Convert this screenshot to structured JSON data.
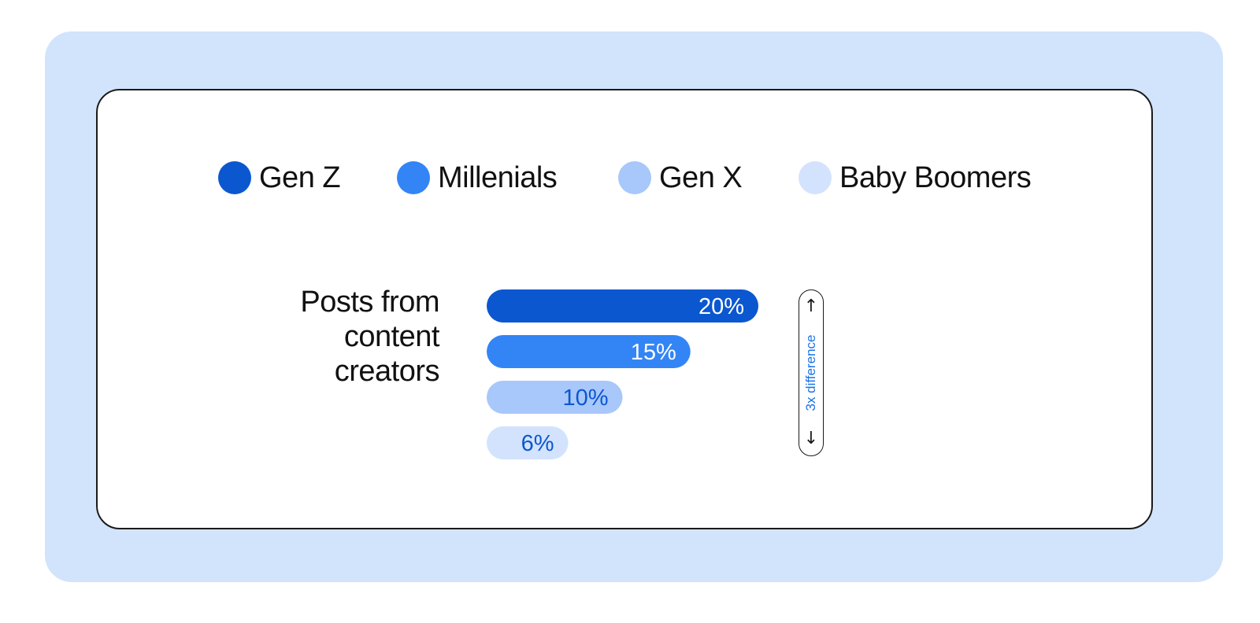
{
  "colors": {
    "background_panel": "#d2e3fc",
    "card": "#ffffff",
    "gen_z": "#0b57d0",
    "millenials": "#3385f5",
    "gen_x": "#a8c7fa",
    "baby_boomers": "#d3e3fd",
    "diff_text": "#1a73e8"
  },
  "legend": [
    {
      "label": "Gen Z",
      "color": "#0b57d0"
    },
    {
      "label": "Millenials",
      "color": "#3385f5"
    },
    {
      "label": "Gen X",
      "color": "#a8c7fa"
    },
    {
      "label": "Baby Boomers",
      "color": "#d3e3fd"
    }
  ],
  "row_label": "Posts from content creators",
  "difference": {
    "label": "3x difference",
    "up_icon": "arrow-up-icon",
    "down_icon": "arrow-down-icon"
  },
  "chart_data": {
    "type": "bar",
    "orientation": "horizontal",
    "categories": [
      "Posts from content creators"
    ],
    "series": [
      {
        "name": "Gen Z",
        "values": [
          20
        ],
        "label": "20%",
        "color": "#0b57d0",
        "label_color": "#ffffff"
      },
      {
        "name": "Millenials",
        "values": [
          15
        ],
        "label": "15%",
        "color": "#3385f5",
        "label_color": "#ffffff"
      },
      {
        "name": "Gen X",
        "values": [
          10
        ],
        "label": "10%",
        "color": "#a8c7fa",
        "label_color": "#0b57d0"
      },
      {
        "name": "Baby Boomers",
        "values": [
          6
        ],
        "label": "6%",
        "color": "#d3e3fd",
        "label_color": "#0b57d0"
      }
    ],
    "title": "",
    "xlabel": "",
    "ylabel": "",
    "legend_position": "top",
    "grid": false,
    "annotation": "3x difference"
  }
}
